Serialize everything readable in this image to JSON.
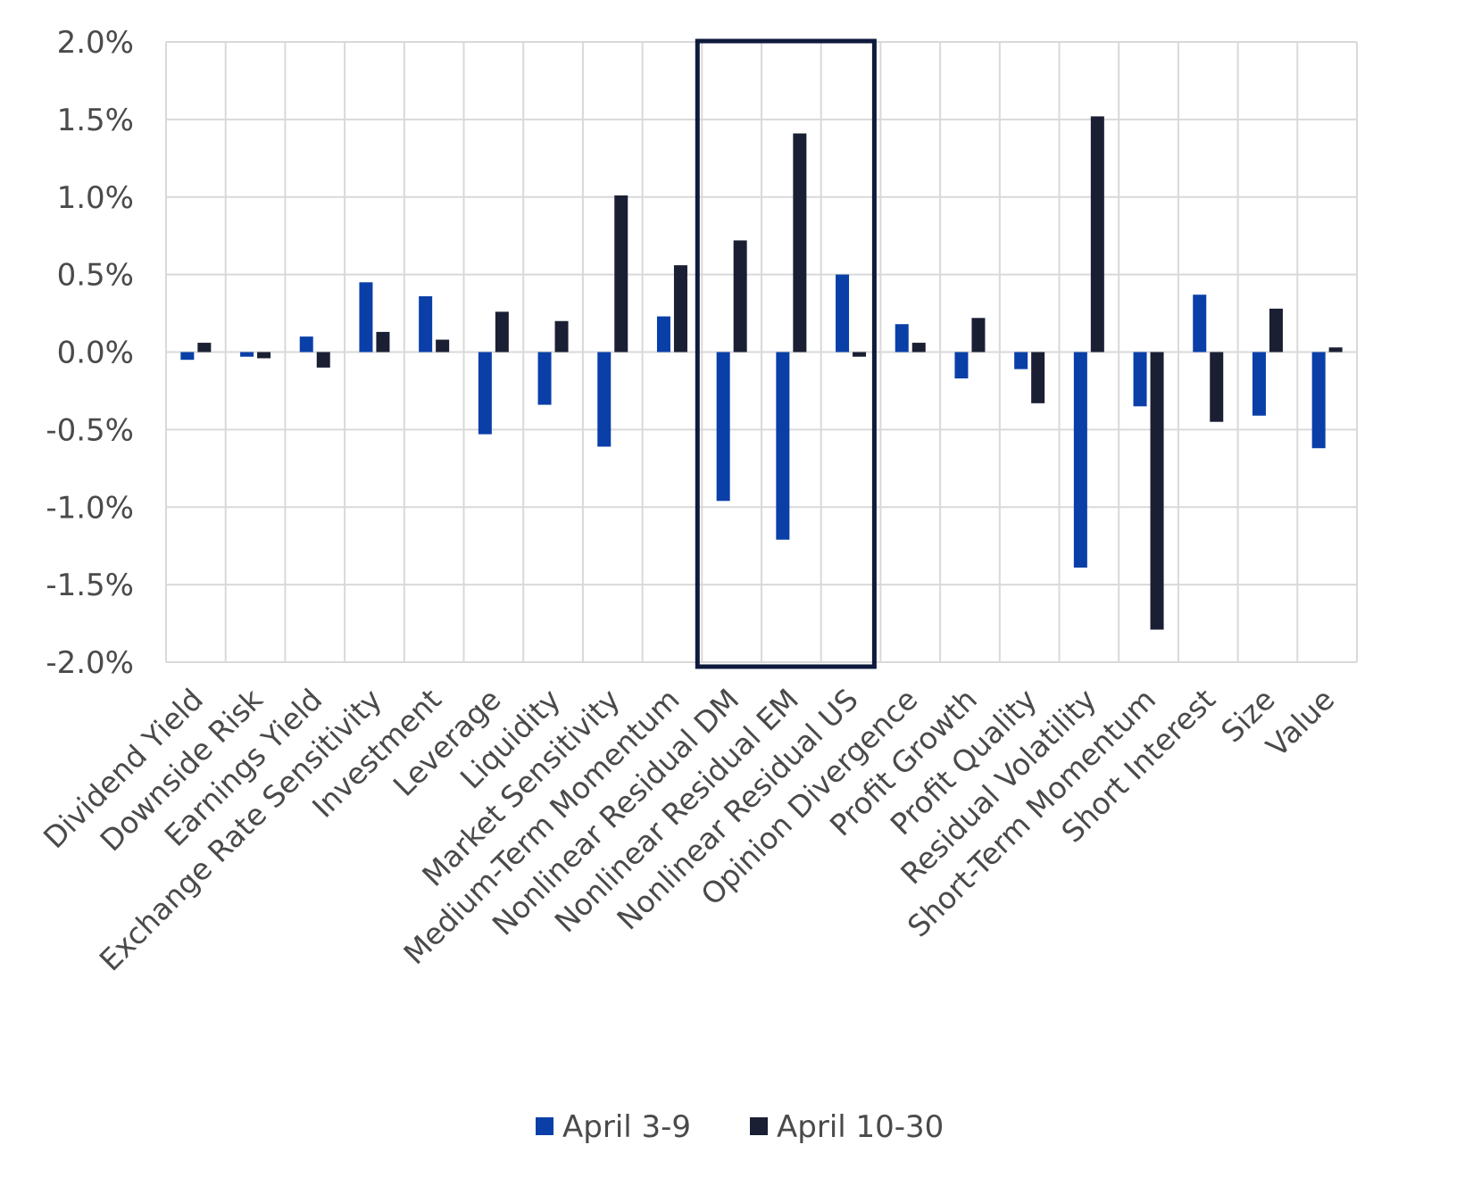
{
  "chart_data": {
    "type": "bar",
    "categories": [
      "Dividend Yield",
      "Downside Risk",
      "Earnings Yield",
      "Exchange Rate Sensitivity",
      "Investment",
      "Leverage",
      "Liquidity",
      "Market Sensitivity",
      "Medium-Term Momentum",
      "Nonlinear Residual DM",
      "Nonlinear Residual EM",
      "Nonlinear Residual US",
      "Opinion Divergence",
      "Profit Growth",
      "Profit Quality",
      "Residual Volatility",
      "Short-Term Momentum",
      "Short Interest",
      "Size",
      "Value"
    ],
    "series": [
      {
        "name": "April 3-9",
        "color": "#0a3fa8",
        "values": [
          -0.05,
          -0.03,
          0.1,
          0.45,
          0.36,
          -0.53,
          -0.34,
          -0.61,
          0.23,
          -0.96,
          -1.21,
          0.5,
          0.18,
          -0.17,
          -0.11,
          -1.39,
          -0.35,
          0.37,
          -0.41,
          -0.62
        ]
      },
      {
        "name": "April 10-30",
        "color": "#1b1f33",
        "values": [
          0.06,
          -0.04,
          -0.1,
          0.13,
          0.08,
          0.26,
          0.2,
          1.01,
          0.56,
          0.72,
          1.41,
          -0.03,
          0.06,
          0.22,
          -0.33,
          1.52,
          -1.79,
          -0.45,
          0.28,
          0.03
        ]
      }
    ],
    "yticks": [
      "2.0%",
      "1.5%",
      "1.0%",
      "0.5%",
      "0.0%",
      "-0.5%",
      "-1.0%",
      "-1.5%",
      "-2.0%"
    ],
    "ylim": [
      -2.0,
      2.0
    ],
    "grid": true,
    "legend_position": "bottom",
    "highlight": {
      "categories": [
        "Nonlinear Residual DM",
        "Nonlinear Residual EM",
        "Nonlinear Residual US"
      ],
      "color": "#0f1a3c"
    }
  }
}
